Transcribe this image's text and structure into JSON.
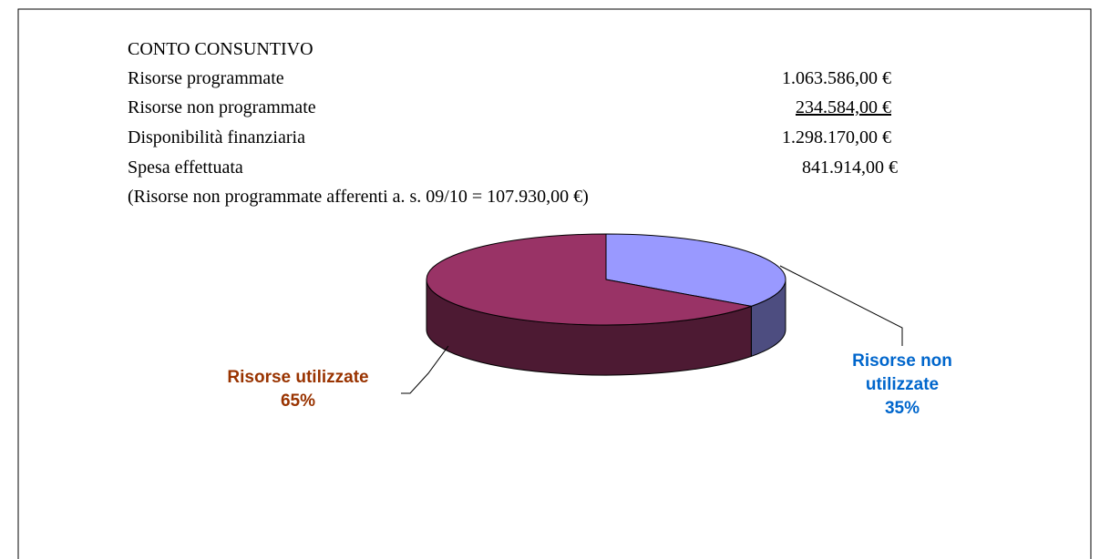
{
  "summary": {
    "title": "CONTO CONSUNTIVO",
    "rows": [
      [
        "Risorse programmate",
        "1.063.586,00 €"
      ],
      [
        "Risorse non programmate",
        "234.584,00 €"
      ],
      [
        "Disponibilità finanziaria",
        "1.298.170,00 €"
      ],
      [
        "Spesa effettuata",
        "841.914,00 €"
      ]
    ],
    "note": "(Risorse non programmate afferenti a. s. 09/10 = 107.930,00 €)"
  },
  "chart_data": {
    "type": "pie",
    "style": "3d",
    "categories": [
      "Risorse non utilizzate",
      "Risorse utilizzate"
    ],
    "values": [
      35,
      65
    ],
    "value_labels": [
      "35%",
      "65%"
    ],
    "colors": [
      "#9999ff",
      "#993366"
    ],
    "label_colors": [
      "#0066cc",
      "#993300"
    ]
  }
}
